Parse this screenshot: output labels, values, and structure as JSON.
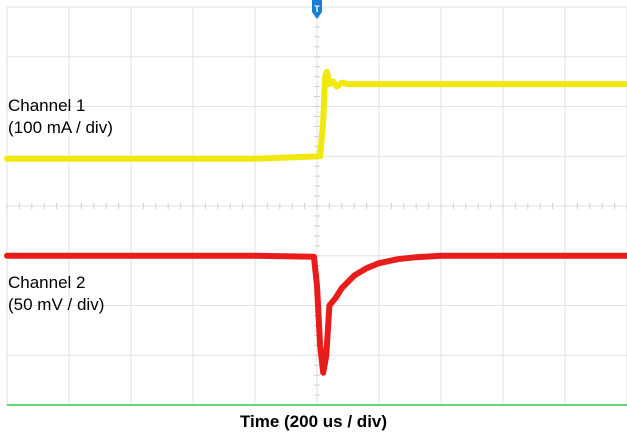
{
  "chart_data": {
    "type": "line",
    "title": "",
    "xlabel": "Time (200 us / div)",
    "ylabel": "",
    "grid": true,
    "trigger_marker": "T",
    "xlim": [
      0,
      10
    ],
    "ylim": [
      0,
      8
    ],
    "series": [
      {
        "name": "Channel 1",
        "scale": "(100 mA / div)",
        "color": "#f0e800",
        "x": [
          0,
          1,
          2,
          3,
          4,
          5.05,
          5.1,
          5.13,
          5.16,
          5.2,
          5.26,
          5.32,
          5.4,
          5.5,
          5.7,
          6,
          7,
          8,
          9,
          10
        ],
        "y": [
          4.95,
          4.95,
          4.95,
          4.95,
          4.95,
          5.0,
          5.7,
          6.6,
          6.7,
          6.45,
          6.5,
          6.4,
          6.48,
          6.45,
          6.45,
          6.45,
          6.45,
          6.45,
          6.45,
          6.45
        ]
      },
      {
        "name": "Channel 2",
        "scale": "(50 mV / div)",
        "color": "#e81010",
        "x": [
          0,
          1,
          2,
          3,
          4,
          4.95,
          5.0,
          5.05,
          5.1,
          5.15,
          5.2,
          5.3,
          5.4,
          5.6,
          5.8,
          6.0,
          6.3,
          6.6,
          7,
          8,
          9,
          10
        ],
        "y": [
          3.0,
          3.0,
          3.0,
          3.0,
          3.0,
          2.98,
          2.4,
          1.2,
          0.65,
          1.0,
          2.0,
          2.15,
          2.35,
          2.6,
          2.75,
          2.85,
          2.93,
          2.97,
          3.0,
          3.0,
          3.0,
          3.0
        ]
      }
    ]
  }
}
